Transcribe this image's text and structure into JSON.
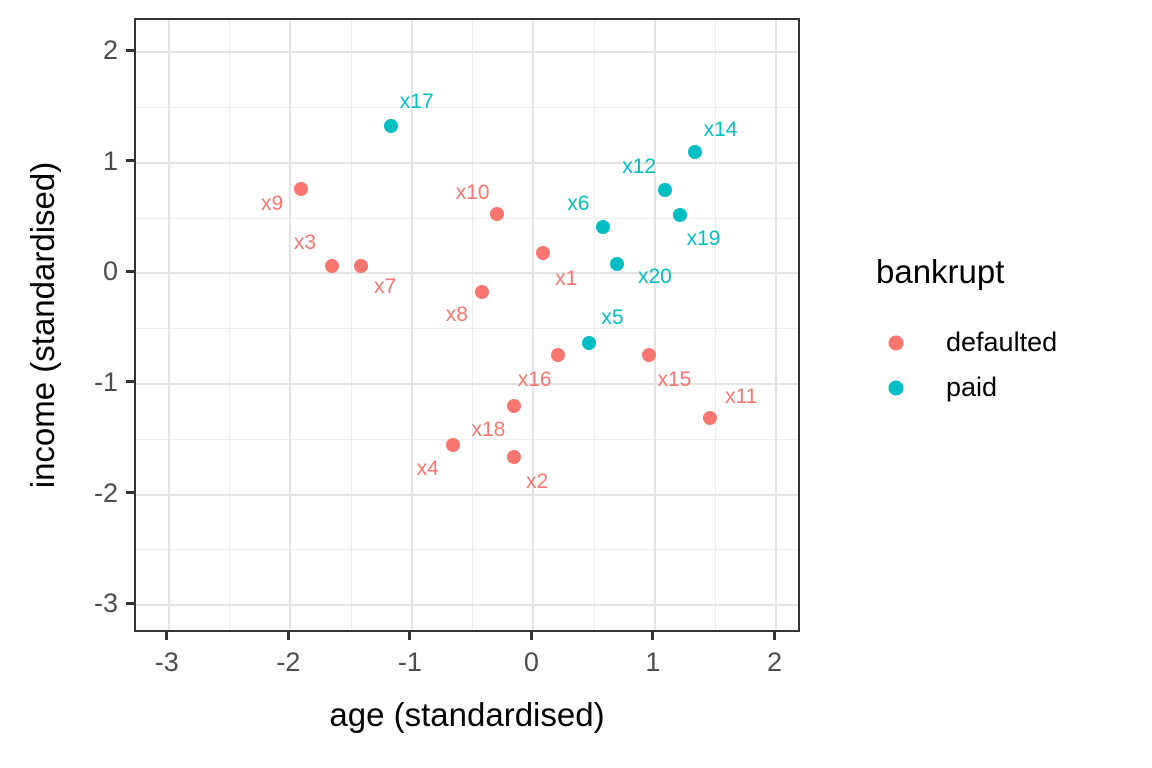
{
  "page": {
    "background": "#ffffff"
  },
  "chart_data": {
    "type": "scatter",
    "title": "",
    "xlabel": "age (standardised)",
    "ylabel": "income (standardised)",
    "xlim": [
      -3.27,
      2.21
    ],
    "ylim": [
      -3.26,
      2.29
    ],
    "x_ticks": [
      -3,
      -2,
      -1,
      0,
      1,
      2
    ],
    "y_ticks": [
      -3,
      -2,
      -1,
      0,
      1,
      2
    ],
    "minor_grid_step": 0.5,
    "grid": "major-and-minor",
    "legend_position": "right",
    "series": [
      {
        "name": "defaulted",
        "color": "#F8766D",
        "points": [
          {
            "id": "x1",
            "x": 0.08,
            "y": 0.18,
            "lx": 0.27,
            "ly": -0.05
          },
          {
            "id": "x2",
            "x": -0.16,
            "y": -1.66,
            "lx": 0.03,
            "ly": -1.89
          },
          {
            "id": "x3",
            "x": -1.66,
            "y": 0.07,
            "lx": -1.88,
            "ly": 0.27
          },
          {
            "id": "x4",
            "x": -0.66,
            "y": -1.55,
            "lx": -0.87,
            "ly": -1.77
          },
          {
            "id": "x7",
            "x": -1.42,
            "y": 0.07,
            "lx": -1.22,
            "ly": -0.12
          },
          {
            "id": "x8",
            "x": -0.42,
            "y": -0.17,
            "lx": -0.63,
            "ly": -0.38
          },
          {
            "id": "x9",
            "x": -1.91,
            "y": 0.76,
            "lx": -2.15,
            "ly": 0.63
          },
          {
            "id": "x10",
            "x": -0.3,
            "y": 0.54,
            "lx": -0.5,
            "ly": 0.73
          },
          {
            "id": "x11",
            "x": 1.45,
            "y": -1.31,
            "lx": 1.71,
            "ly": -1.12
          },
          {
            "id": "x15",
            "x": 0.95,
            "y": -0.74,
            "lx": 1.16,
            "ly": -0.96
          },
          {
            "id": "x16",
            "x": 0.2,
            "y": -0.74,
            "lx": 0.01,
            "ly": -0.96
          },
          {
            "id": "x18",
            "x": -0.16,
            "y": -1.2,
            "lx": -0.37,
            "ly": -1.42
          }
        ]
      },
      {
        "name": "paid",
        "color": "#00BFC4",
        "points": [
          {
            "id": "x5",
            "x": 0.46,
            "y": -0.63,
            "lx": 0.65,
            "ly": -0.4
          },
          {
            "id": "x6",
            "x": 0.57,
            "y": 0.42,
            "lx": 0.37,
            "ly": 0.63
          },
          {
            "id": "x12",
            "x": 1.08,
            "y": 0.75,
            "lx": 0.87,
            "ly": 0.96
          },
          {
            "id": "x14",
            "x": 1.33,
            "y": 1.1,
            "lx": 1.54,
            "ly": 1.3
          },
          {
            "id": "x17",
            "x": -1.17,
            "y": 1.33,
            "lx": -0.96,
            "ly": 1.55
          },
          {
            "id": "x19",
            "x": 1.21,
            "y": 0.53,
            "lx": 1.4,
            "ly": 0.31
          },
          {
            "id": "x20",
            "x": 0.69,
            "y": 0.08,
            "lx": 1.0,
            "ly": -0.03
          }
        ]
      }
    ]
  },
  "legend": {
    "title": "bankrupt",
    "key_glyph": "point-with-a",
    "items": [
      {
        "label": "defaulted",
        "color": "#F8766D"
      },
      {
        "label": "paid",
        "color": "#00BFC4"
      }
    ]
  },
  "style": {
    "grid_major_color": "#e4e4e4",
    "grid_minor_color": "#ededed",
    "panel_border_color": "#343434",
    "tick_text_color": "#4d4d4d"
  }
}
